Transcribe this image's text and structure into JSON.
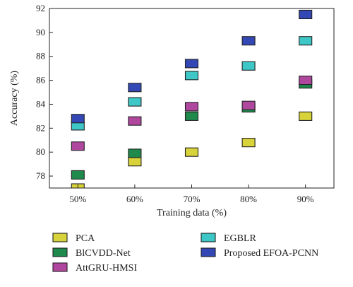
{
  "chart_data": {
    "type": "scatter",
    "title": "",
    "xlabel": "Training data (%)",
    "ylabel": "Accuracy (%)",
    "categories": [
      "50%",
      "60%",
      "70%",
      "80%",
      "90%"
    ],
    "ylim": [
      77,
      92
    ],
    "yticks": [
      78,
      80,
      82,
      84,
      86,
      88,
      90,
      92
    ],
    "grid": false,
    "legend_position": "bottom",
    "series": [
      {
        "name": "PCA",
        "color": "#d8d33a",
        "values": [
          77.0,
          79.2,
          80.0,
          80.8,
          83.0
        ]
      },
      {
        "name": "BlCVDD-Net",
        "color": "#1f8a4c",
        "values": [
          78.1,
          79.9,
          83.0,
          83.7,
          85.7
        ]
      },
      {
        "name": "AttGRU-HMSI",
        "color": "#b0479e",
        "values": [
          80.5,
          82.6,
          83.8,
          83.9,
          86.0
        ]
      },
      {
        "name": "EGBLR",
        "color": "#3ec7c7",
        "values": [
          82.2,
          84.2,
          86.4,
          87.2,
          89.3
        ]
      },
      {
        "name": "Proposed EFOA-PCNN",
        "color": "#3348b5",
        "values": [
          82.8,
          85.4,
          87.4,
          89.3,
          91.5
        ]
      }
    ]
  }
}
